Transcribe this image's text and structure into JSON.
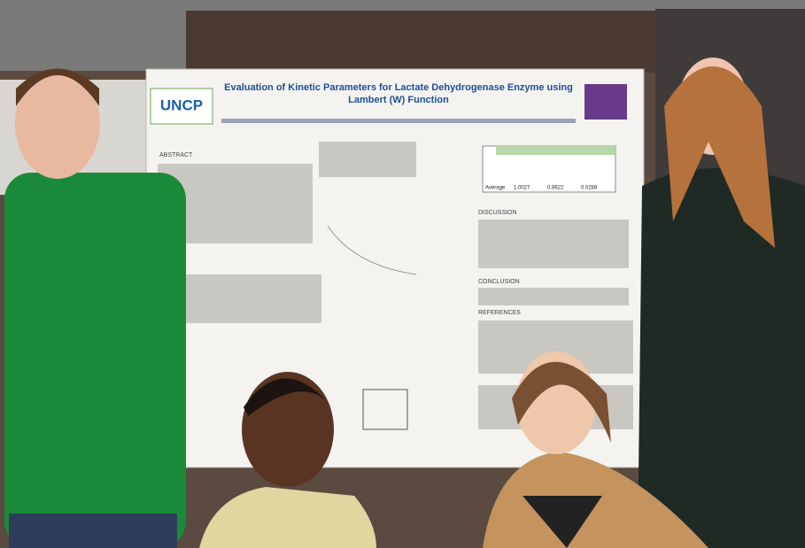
{
  "poster": {
    "title": "Evaluation of Kinetic Parameters for Lactate Dehydrogenase Enzyme using Lambert (W) Function",
    "logo": "UNCP",
    "sections": [
      "ABSTRACT",
      "DISCUSSION",
      "CONCLUSION",
      "REFERENCES"
    ],
    "table_average_row": [
      "Average",
      "1.0027",
      "0.8622",
      "0.0288"
    ]
  }
}
